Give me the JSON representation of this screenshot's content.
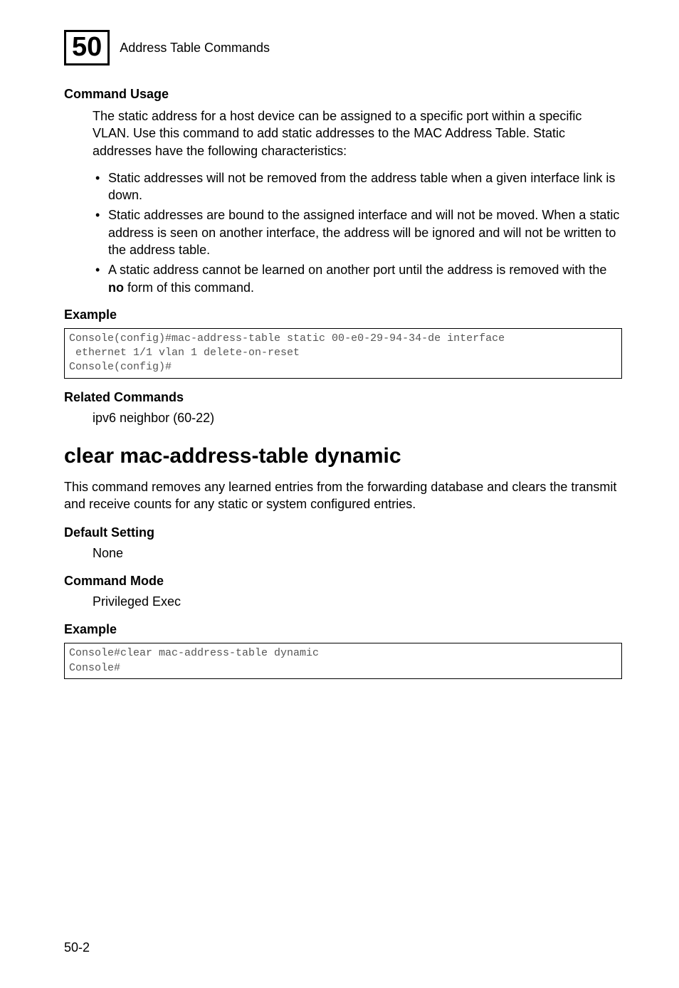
{
  "header": {
    "chapter_number": "50",
    "chapter_title": "Address Table Commands"
  },
  "section1": {
    "usage_heading": "Command Usage",
    "usage_para": "The static address for a host device can be assigned to a specific port within a specific VLAN. Use this command to add static addresses to the MAC Address Table. Static addresses have the following characteristics:",
    "bullets": [
      "Static addresses will not be removed from the address table when a given interface link is down.",
      "Static addresses are bound to the assigned interface and will not be moved. When a static address is seen on another interface, the address will be ignored and will not be written to the address table.",
      "A static address cannot be learned on another port until the address is removed with the "
    ],
    "bullet3_bold": "no",
    "bullet3_tail": " form of this command.",
    "example_heading": "Example",
    "code1": "Console(config)#mac-address-table static 00-e0-29-94-34-de interface\n ethernet 1/1 vlan 1 delete-on-reset\nConsole(config)#",
    "related_heading": "Related Commands",
    "related_value": "ipv6 neighbor (60-22)"
  },
  "section2": {
    "cmd_title": "clear mac-address-table dynamic",
    "desc": "This command removes any learned entries from the forwarding database and clears the transmit and receive counts for any static or system configured entries.",
    "default_heading": "Default Setting",
    "default_value": "None",
    "mode_heading": "Command Mode",
    "mode_value": "Privileged Exec",
    "example_heading": "Example",
    "code2": "Console#clear mac-address-table dynamic\nConsole#"
  },
  "footer": {
    "page": "50-2"
  },
  "style": {
    "background_color": "#ffffff",
    "text_color": "#000000",
    "code_text_color": "#555555",
    "border_color": "#000000",
    "body_fontsize_pt": 18,
    "h2_fontsize_pt": 30,
    "chapter_num_fontsize_pt": 38,
    "code_fontsize_pt": 15,
    "font_family_body": "Arial",
    "font_family_code": "Courier New"
  }
}
